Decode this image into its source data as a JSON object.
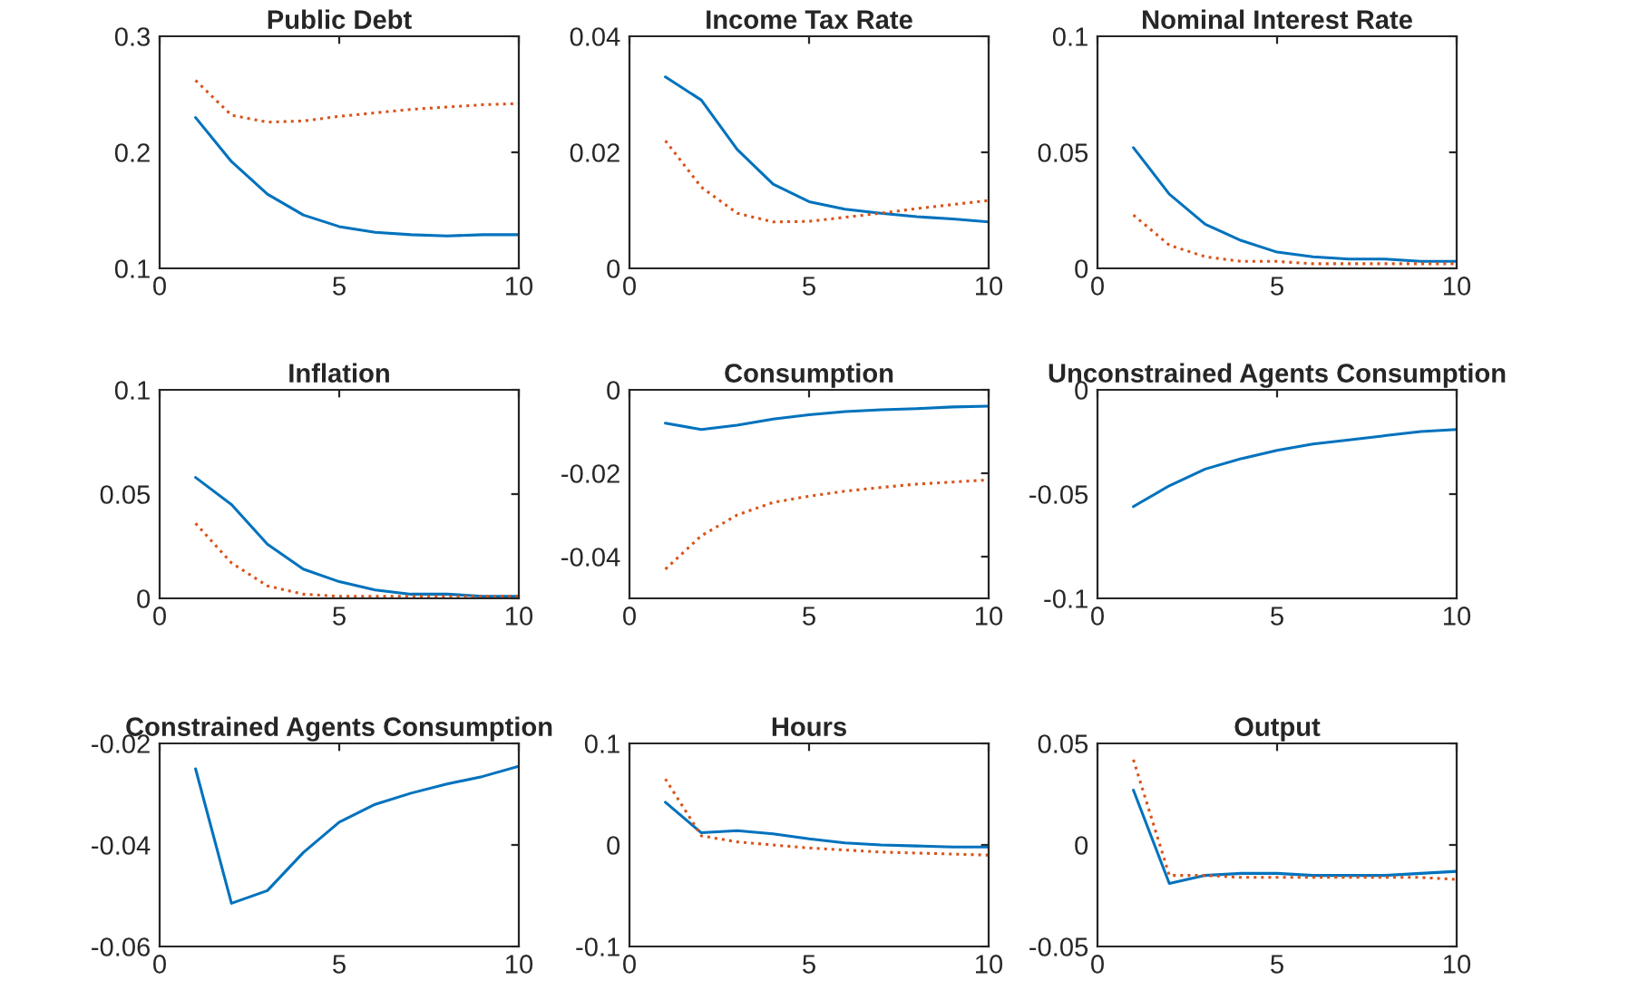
{
  "chart_data": [
    {
      "type": "line",
      "title": "Public Debt",
      "x": [
        1,
        2,
        3,
        4,
        5,
        6,
        7,
        8,
        9,
        10
      ],
      "xlim": [
        0,
        10
      ],
      "xticks": [
        0,
        5,
        10
      ],
      "ylim": [
        0.1,
        0.3
      ],
      "yticks": [
        0.1,
        0.2,
        0.3
      ],
      "series": [
        {
          "color": "#0072bd",
          "line_style": "solid",
          "values": [
            0.23,
            0.192,
            0.164,
            0.146,
            0.136,
            0.131,
            0.129,
            0.128,
            0.129,
            0.129
          ]
        },
        {
          "color": "#d95319",
          "line_style": "dotted",
          "values": [
            0.262,
            0.232,
            0.226,
            0.227,
            0.231,
            0.234,
            0.237,
            0.239,
            0.241,
            0.242
          ]
        }
      ]
    },
    {
      "type": "line",
      "title": "Income Tax Rate",
      "x": [
        1,
        2,
        3,
        4,
        5,
        6,
        7,
        8,
        9,
        10
      ],
      "xlim": [
        0,
        10
      ],
      "xticks": [
        0,
        5,
        10
      ],
      "ylim": [
        0,
        0.04
      ],
      "yticks": [
        0,
        0.02,
        0.04
      ],
      "series": [
        {
          "color": "#0072bd",
          "line_style": "solid",
          "values": [
            0.033,
            0.029,
            0.0205,
            0.0145,
            0.0115,
            0.0102,
            0.0095,
            0.0089,
            0.0085,
            0.008
          ]
        },
        {
          "color": "#d95319",
          "line_style": "dotted",
          "values": [
            0.022,
            0.014,
            0.0095,
            0.008,
            0.0081,
            0.0088,
            0.0095,
            0.0103,
            0.011,
            0.0117
          ]
        }
      ]
    },
    {
      "type": "line",
      "title": "Nominal Interest Rate",
      "x": [
        1,
        2,
        3,
        4,
        5,
        6,
        7,
        8,
        9,
        10
      ],
      "xlim": [
        0,
        10
      ],
      "xticks": [
        0,
        5,
        10
      ],
      "ylim": [
        0,
        0.1
      ],
      "yticks": [
        0,
        0.05,
        0.1
      ],
      "series": [
        {
          "color": "#0072bd",
          "line_style": "solid",
          "values": [
            0.052,
            0.032,
            0.019,
            0.012,
            0.007,
            0.005,
            0.004,
            0.004,
            0.003,
            0.003
          ]
        },
        {
          "color": "#d95319",
          "line_style": "dotted",
          "values": [
            0.023,
            0.01,
            0.005,
            0.003,
            0.003,
            0.002,
            0.002,
            0.002,
            0.002,
            0.002
          ]
        }
      ]
    },
    {
      "type": "line",
      "title": "Inflation",
      "x": [
        1,
        2,
        3,
        4,
        5,
        6,
        7,
        8,
        9,
        10
      ],
      "xlim": [
        0,
        10
      ],
      "xticks": [
        0,
        5,
        10
      ],
      "ylim": [
        0,
        0.1
      ],
      "yticks": [
        0,
        0.05,
        0.1
      ],
      "series": [
        {
          "color": "#0072bd",
          "line_style": "solid",
          "values": [
            0.058,
            0.045,
            0.026,
            0.014,
            0.008,
            0.004,
            0.002,
            0.002,
            0.001,
            0.001
          ]
        },
        {
          "color": "#d95319",
          "line_style": "dotted",
          "values": [
            0.036,
            0.017,
            0.006,
            0.002,
            0.001,
            0.001,
            0.001,
            0.001,
            0.001,
            0.001
          ]
        }
      ]
    },
    {
      "type": "line",
      "title": "Consumption",
      "x": [
        1,
        2,
        3,
        4,
        5,
        6,
        7,
        8,
        9,
        10
      ],
      "xlim": [
        0,
        10
      ],
      "xticks": [
        0,
        5,
        10
      ],
      "ylim": [
        -0.05,
        0
      ],
      "yticks": [
        {
          "value": -0.04,
          "label": "-0.04"
        },
        {
          "value": -0.02,
          "label": "-0.02"
        },
        0
      ],
      "series": [
        {
          "color": "#0072bd",
          "line_style": "solid",
          "values": [
            -0.008,
            -0.0095,
            -0.0085,
            -0.007,
            -0.006,
            -0.0052,
            -0.0048,
            -0.0045,
            -0.0041,
            -0.0039
          ]
        },
        {
          "color": "#d95319",
          "line_style": "dotted",
          "values": [
            -0.043,
            -0.035,
            -0.03,
            -0.027,
            -0.0255,
            -0.0243,
            -0.0234,
            -0.0226,
            -0.0221,
            -0.0216
          ]
        }
      ]
    },
    {
      "type": "line",
      "title": "Unconstrained Agents Consumption",
      "x": [
        1,
        2,
        3,
        4,
        5,
        6,
        7,
        8,
        9,
        10
      ],
      "xlim": [
        0,
        10
      ],
      "xticks": [
        0,
        5,
        10
      ],
      "ylim": [
        -0.1,
        0
      ],
      "yticks": [
        {
          "value": -0.1,
          "label": "-0.1"
        },
        {
          "value": -0.05,
          "label": "-0.05"
        },
        0
      ],
      "series": [
        {
          "color": "#0072bd",
          "line_style": "solid",
          "values": [
            -0.056,
            -0.046,
            -0.038,
            -0.033,
            -0.029,
            -0.026,
            -0.024,
            -0.022,
            -0.02,
            -0.019
          ]
        }
      ]
    },
    {
      "type": "line",
      "title": "Constrained Agents Consumption",
      "x": [
        1,
        2,
        3,
        4,
        5,
        6,
        7,
        8,
        9,
        10
      ],
      "xlim": [
        0,
        10
      ],
      "xticks": [
        0,
        5,
        10
      ],
      "ylim": [
        -0.06,
        -0.02
      ],
      "yticks": [
        {
          "value": -0.06,
          "label": "-0.06"
        },
        {
          "value": -0.04,
          "label": "-0.04"
        },
        {
          "value": -0.02,
          "label": "-0.02"
        }
      ],
      "series": [
        {
          "color": "#0072bd",
          "line_style": "solid",
          "values": [
            -0.025,
            -0.0515,
            -0.049,
            -0.0415,
            -0.0355,
            -0.032,
            -0.0298,
            -0.028,
            -0.0265,
            -0.0245
          ]
        }
      ]
    },
    {
      "type": "line",
      "title": "Hours",
      "x": [
        1,
        2,
        3,
        4,
        5,
        6,
        7,
        8,
        9,
        10
      ],
      "xlim": [
        0,
        10
      ],
      "xticks": [
        0,
        5,
        10
      ],
      "ylim": [
        -0.1,
        0.1
      ],
      "yticks": [
        {
          "value": -0.1,
          "label": "-0.1"
        },
        0,
        0.1
      ],
      "series": [
        {
          "color": "#0072bd",
          "line_style": "solid",
          "values": [
            0.042,
            0.012,
            0.014,
            0.011,
            0.006,
            0.002,
            0.0,
            -0.001,
            -0.002,
            -0.002
          ]
        },
        {
          "color": "#d95319",
          "line_style": "dotted",
          "values": [
            0.065,
            0.009,
            0.003,
            0.0,
            -0.003,
            -0.005,
            -0.007,
            -0.008,
            -0.009,
            -0.01
          ]
        }
      ]
    },
    {
      "type": "line",
      "title": "Output",
      "x": [
        1,
        2,
        3,
        4,
        5,
        6,
        7,
        8,
        9,
        10
      ],
      "xlim": [
        0,
        10
      ],
      "xticks": [
        0,
        5,
        10
      ],
      "ylim": [
        -0.05,
        0.05
      ],
      "yticks": [
        {
          "value": -0.05,
          "label": "-0.05"
        },
        0,
        0.05
      ],
      "series": [
        {
          "color": "#0072bd",
          "line_style": "solid",
          "values": [
            0.027,
            -0.019,
            -0.015,
            -0.014,
            -0.014,
            -0.015,
            -0.015,
            -0.015,
            -0.014,
            -0.013
          ]
        },
        {
          "color": "#d95319",
          "line_style": "dotted",
          "values": [
            0.042,
            -0.015,
            -0.015,
            -0.016,
            -0.016,
            -0.016,
            -0.016,
            -0.016,
            -0.016,
            -0.017
          ]
        }
      ]
    }
  ]
}
